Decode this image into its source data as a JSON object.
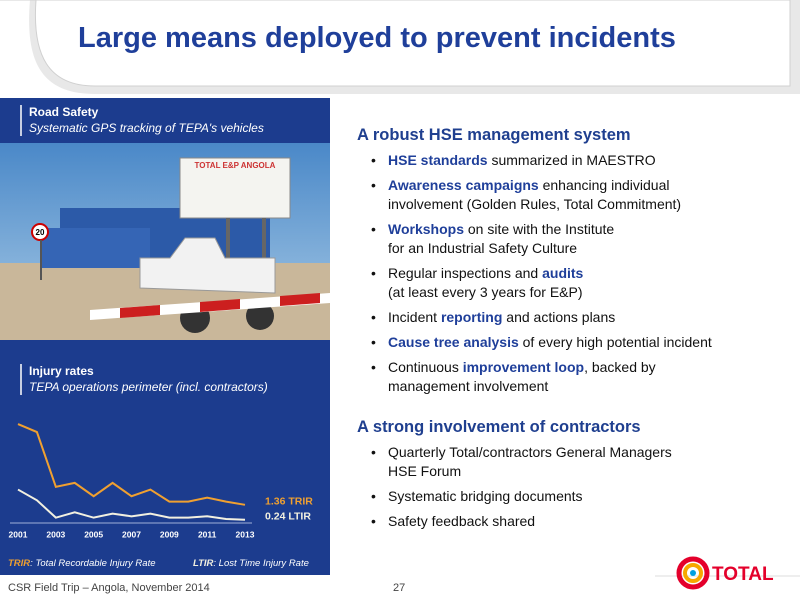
{
  "header": {
    "title": "Large means deployed to prevent incidents"
  },
  "left": {
    "road": {
      "heading": "Road Safety",
      "subtitle": "Systematic GPS tracking of TEPA's vehicles"
    },
    "photo": {
      "sign": "TOTAL E&P ANGOLA",
      "speed": "20"
    },
    "injury": {
      "heading": "Injury rates",
      "subtitle": "TEPA operations perimeter (incl. contractors)"
    }
  },
  "chart_data": {
    "type": "line",
    "categories": [
      "2001",
      null,
      "2003",
      null,
      "2005",
      null,
      "2007",
      null,
      "2009",
      null,
      "2011",
      null,
      "2013"
    ],
    "ylim": [
      0,
      8
    ],
    "series": [
      {
        "name": "TRIR",
        "description": ": Total Recordable Injury Rate",
        "color": "#f0a030",
        "values": [
          7.4,
          6.8,
          2.7,
          3.0,
          2.0,
          3.0,
          2.0,
          2.5,
          1.6,
          1.6,
          1.9,
          1.6,
          1.36
        ],
        "value_labels": [
          null,
          null,
          null,
          null,
          null,
          null,
          null,
          null,
          null,
          null,
          null,
          null,
          "1.36 TRIR"
        ]
      },
      {
        "name": "LTIR",
        "description": ": Lost Time Injury Rate",
        "color": "#f2f0e0",
        "values": [
          2.5,
          1.7,
          0.4,
          0.8,
          0.4,
          0.7,
          0.5,
          0.7,
          0.4,
          0.4,
          0.5,
          0.3,
          0.24
        ],
        "value_labels": [
          null,
          null,
          null,
          null,
          null,
          null,
          null,
          null,
          null,
          null,
          null,
          null,
          "0.24 LTIR"
        ]
      }
    ]
  },
  "sections": [
    {
      "heading": "A robust HSE management system",
      "bullets": [
        {
          "lines": [
            [
              {
                "text": "HSE standards",
                "em": true
              },
              {
                "text": " summarized in MAESTRO",
                "em": false
              }
            ]
          ]
        },
        {
          "lines": [
            [
              {
                "text": "Awareness campaigns",
                "em": true
              },
              {
                "text": " enhancing individual",
                "em": false
              }
            ],
            [
              {
                "text": "involvement (Golden Rules, Total Commitment)",
                "em": false
              }
            ]
          ]
        },
        {
          "lines": [
            [
              {
                "text": "Workshops",
                "em": true
              },
              {
                "text": " on site with the Institute",
                "em": false
              }
            ],
            [
              {
                "text": "for an Industrial Safety Culture",
                "em": false
              }
            ]
          ]
        },
        {
          "lines": [
            [
              {
                "text": "Regular inspections and ",
                "em": false
              },
              {
                "text": "audits",
                "em": true
              }
            ],
            [
              {
                "text": "(at least every 3 years for E&P)",
                "em": false
              }
            ]
          ]
        },
        {
          "lines": [
            [
              {
                "text": "Incident ",
                "em": false
              },
              {
                "text": "reporting",
                "em": true
              },
              {
                "text": " and actions plans",
                "em": false
              }
            ]
          ]
        },
        {
          "lines": [
            [
              {
                "text": "Cause tree analysis",
                "em": true
              },
              {
                "text": " of every high potential incident",
                "em": false
              }
            ]
          ]
        },
        {
          "lines": [
            [
              {
                "text": "Continuous ",
                "em": false
              },
              {
                "text": "improvement loop",
                "em": true
              },
              {
                "text": ", backed by",
                "em": false
              }
            ],
            [
              {
                "text": "management involvement",
                "em": false
              }
            ]
          ]
        }
      ]
    },
    {
      "heading": "A strong involvement of contractors",
      "bullets": [
        {
          "lines": [
            [
              {
                "text": "Quarterly Total/contractors General Managers",
                "em": false
              }
            ],
            [
              {
                "text": "HSE Forum",
                "em": false
              }
            ]
          ]
        },
        {
          "lines": [
            [
              {
                "text": "Systematic bridging documents",
                "em": false
              }
            ]
          ]
        },
        {
          "lines": [
            [
              {
                "text": "Safety feedback shared",
                "em": false
              }
            ]
          ]
        }
      ]
    }
  ],
  "footer": {
    "text": "CSR Field Trip – Angola, November 2014",
    "page": "27",
    "logo": "TOTAL"
  }
}
